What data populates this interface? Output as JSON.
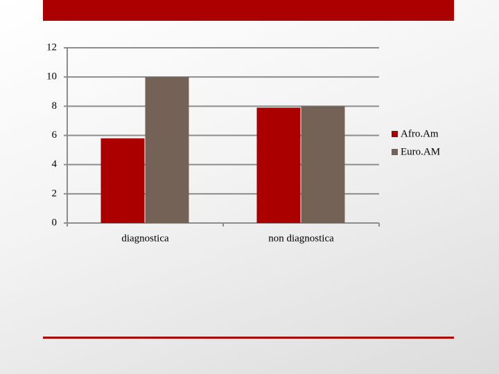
{
  "chart_data": {
    "type": "bar",
    "categories": [
      "diagnostica",
      "non diagnostica"
    ],
    "series": [
      {
        "name": "Afro.Am",
        "color": "#aa0000",
        "values": [
          5.8,
          7.9
        ]
      },
      {
        "name": "Euro.AM",
        "color": "#746256",
        "values": [
          10,
          8
        ]
      }
    ],
    "ylim": [
      0,
      12
    ],
    "yticks": [
      0,
      2,
      4,
      6,
      8,
      10,
      12
    ],
    "grid": true,
    "legend": "right"
  }
}
